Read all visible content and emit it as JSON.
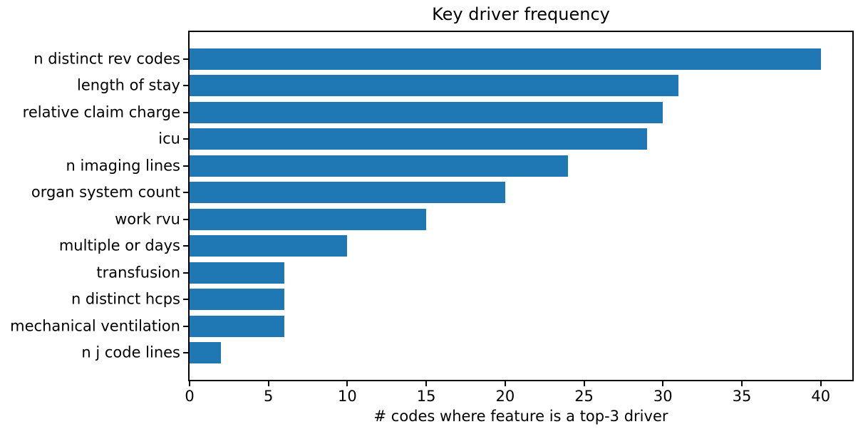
{
  "chart_data": {
    "type": "bar",
    "orientation": "horizontal",
    "title": "Key driver frequency",
    "xlabel": "# codes where feature is a top-3 driver",
    "ylabel": "",
    "categories": [
      "n distinct rev codes",
      "length of stay",
      "relative claim charge",
      "icu",
      "n imaging lines",
      "organ system count",
      "work rvu",
      "multiple or days",
      "transfusion",
      "n distinct hcps",
      "mechanical ventilation",
      "n j code lines"
    ],
    "values": [
      40,
      31,
      30,
      29,
      24,
      20,
      15,
      10,
      6,
      6,
      6,
      2
    ],
    "xlim": [
      0,
      42
    ],
    "xticks": [
      0,
      5,
      10,
      15,
      20,
      25,
      30,
      35,
      40
    ],
    "bar_color": "#1f77b4",
    "spine_color": "#000000",
    "text_color": "#000000",
    "background_color": "#ffffff",
    "grid": false,
    "legend": null
  }
}
